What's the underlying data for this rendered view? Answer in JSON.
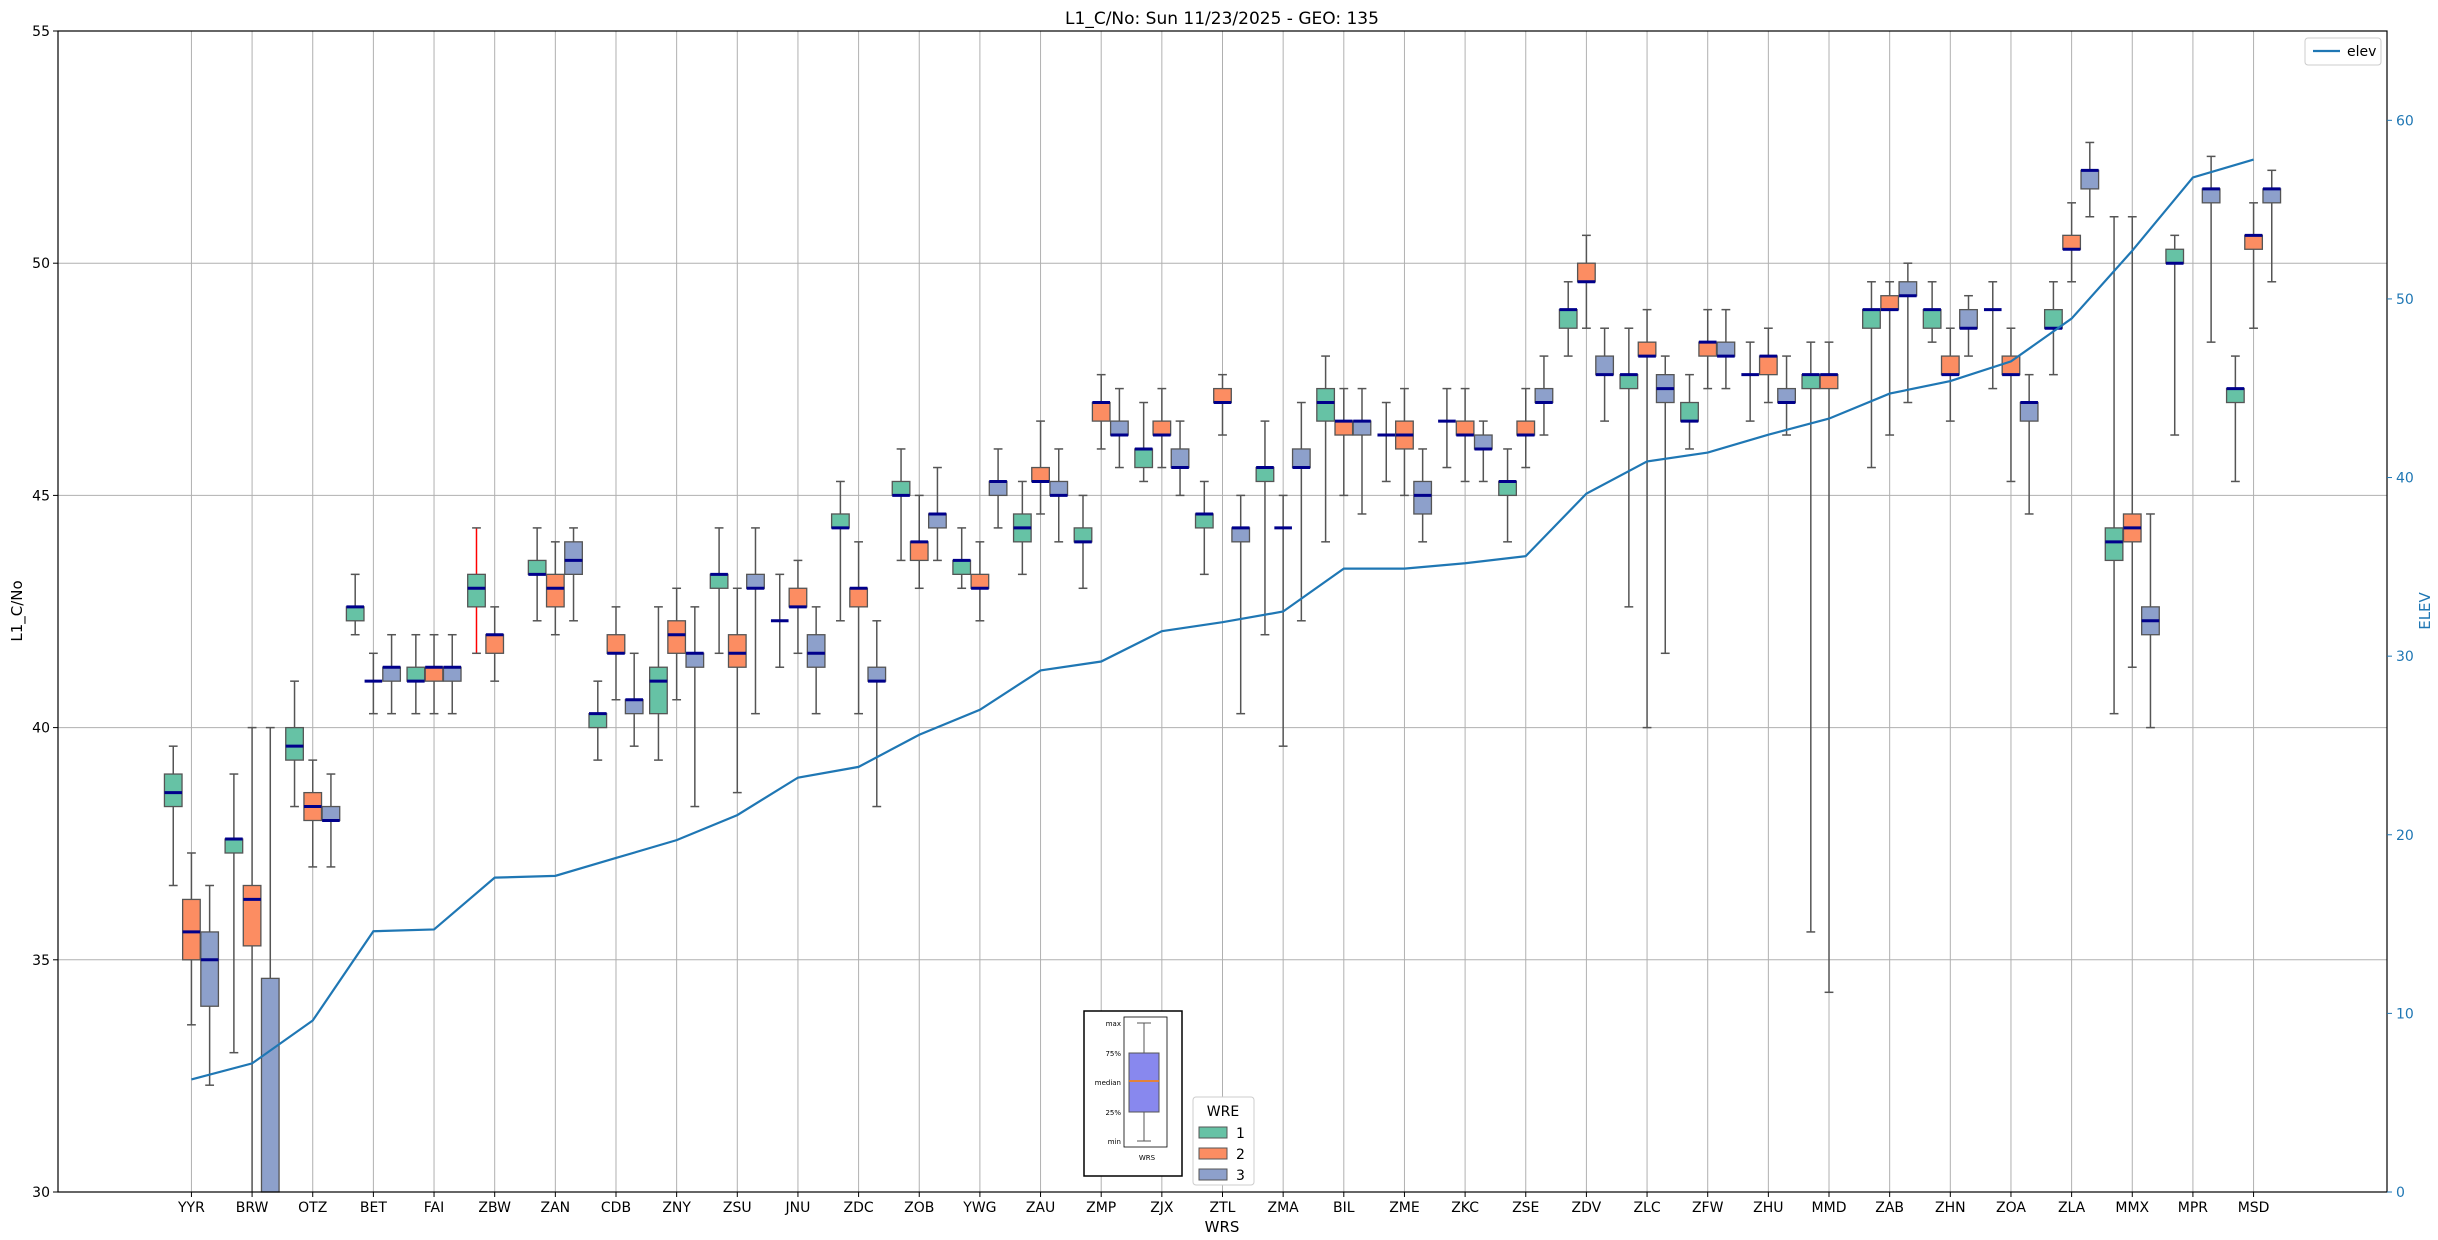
{
  "chart_data": {
    "type": "box",
    "title": "L1_C/No: Sun 11/23/2025 - GEO: 135",
    "xlabel": "WRS",
    "ylabel": "L1_C/No",
    "y2label": "ELEV",
    "ylim": [
      30,
      55
    ],
    "yticks": [
      30,
      35,
      40,
      45,
      50,
      55
    ],
    "y2lim": [
      0,
      65
    ],
    "y2ticks": [
      0,
      10,
      20,
      30,
      40,
      50,
      60
    ],
    "grid": true,
    "categories": [
      "YYR",
      "BRW",
      "OTZ",
      "BET",
      "FAI",
      "ZBW",
      "ZAN",
      "CDB",
      "ZNY",
      "ZSU",
      "JNU",
      "ZDC",
      "ZOB",
      "YWG",
      "ZAU",
      "ZMP",
      "ZJX",
      "ZTL",
      "ZMA",
      "BIL",
      "ZME",
      "ZKC",
      "ZSE",
      "ZDV",
      "ZLC",
      "ZFW",
      "ZHU",
      "MMD",
      "ZAB",
      "ZHN",
      "ZOA",
      "ZLA",
      "MMX",
      "MPR",
      "MSD"
    ],
    "box_stats_order": [
      "min",
      "q1",
      "median",
      "q3",
      "max"
    ],
    "legend": {
      "title": "WRE",
      "placement": "bottom-center"
    },
    "series": [
      {
        "name": "1",
        "color": "#66c2a5",
        "boxes": [
          [
            36.6,
            38.3,
            38.6,
            39.0,
            39.6
          ],
          [
            33.0,
            37.3,
            37.6,
            37.6,
            39.0
          ],
          [
            38.3,
            39.3,
            39.6,
            40.0,
            41.0
          ],
          [
            42.0,
            42.3,
            42.6,
            42.6,
            43.3
          ],
          [
            40.3,
            41.0,
            41.0,
            41.3,
            42.0
          ],
          [
            41.6,
            42.6,
            43.0,
            43.3,
            44.3
          ],
          [
            42.3,
            43.3,
            43.3,
            43.6,
            44.3
          ],
          [
            39.3,
            40.0,
            40.3,
            40.3,
            41.0
          ],
          [
            39.3,
            40.3,
            41.0,
            41.3,
            42.6
          ],
          [
            41.6,
            43.0,
            43.3,
            43.3,
            44.3
          ],
          [
            41.3,
            42.3,
            42.3,
            42.3,
            43.3
          ],
          [
            42.3,
            44.3,
            44.3,
            44.6,
            45.3
          ],
          [
            43.6,
            45.0,
            45.0,
            45.3,
            46.0
          ],
          [
            43.0,
            43.3,
            43.6,
            43.6,
            44.3
          ],
          [
            43.3,
            44.0,
            44.3,
            44.6,
            45.3
          ],
          [
            43.0,
            44.0,
            44.0,
            44.3,
            45.0
          ],
          [
            45.3,
            45.6,
            46.0,
            46.0,
            47.0
          ],
          [
            43.3,
            44.3,
            44.6,
            44.6,
            45.3
          ],
          [
            42.0,
            45.3,
            45.6,
            45.6,
            46.6
          ],
          [
            44.0,
            46.6,
            47.0,
            47.3,
            48.0
          ],
          [
            45.3,
            46.3,
            46.3,
            46.3,
            47.0
          ],
          [
            45.6,
            46.6,
            46.6,
            46.6,
            47.3
          ],
          [
            44.0,
            45.0,
            45.3,
            45.3,
            46.0
          ],
          [
            48.0,
            48.6,
            49.0,
            49.0,
            49.6
          ],
          [
            42.6,
            47.3,
            47.6,
            47.6,
            48.6
          ],
          [
            46.0,
            46.6,
            46.6,
            47.0,
            47.6
          ],
          [
            46.6,
            47.6,
            47.6,
            47.6,
            48.3
          ],
          [
            35.6,
            47.3,
            47.6,
            47.6,
            48.3
          ],
          [
            45.6,
            48.6,
            49.0,
            49.0,
            49.6
          ],
          [
            48.3,
            48.6,
            49.0,
            49.0,
            49.6
          ],
          [
            47.3,
            49.0,
            49.0,
            49.0,
            49.6
          ],
          [
            47.6,
            48.6,
            48.6,
            49.0,
            49.6
          ],
          [
            40.3,
            43.6,
            44.0,
            44.3,
            51.0
          ],
          [
            46.3,
            50.0,
            50.0,
            50.3,
            50.6
          ],
          [
            45.3,
            47.0,
            47.3,
            47.3,
            48.0
          ]
        ]
      },
      {
        "name": "2",
        "color": "#fc8d62",
        "boxes": [
          [
            33.6,
            35.0,
            35.6,
            36.3,
            37.3
          ],
          [
            29.0,
            35.3,
            36.3,
            36.6,
            40.0
          ],
          [
            37.0,
            38.0,
            38.3,
            38.6,
            39.3
          ],
          [
            40.3,
            41.0,
            41.0,
            41.0,
            41.6
          ],
          [
            40.3,
            41.0,
            41.3,
            41.3,
            42.0
          ],
          [
            41.0,
            41.6,
            42.0,
            42.0,
            42.6
          ],
          [
            42.0,
            42.6,
            43.0,
            43.3,
            44.0
          ],
          [
            40.6,
            41.6,
            41.6,
            42.0,
            42.6
          ],
          [
            40.6,
            41.6,
            42.0,
            42.3,
            43.0
          ],
          [
            38.6,
            41.3,
            41.6,
            42.0,
            43.0
          ],
          [
            41.6,
            42.6,
            42.6,
            43.0,
            43.6
          ],
          [
            40.3,
            42.6,
            43.0,
            43.0,
            44.0
          ],
          [
            43.0,
            43.6,
            44.0,
            44.0,
            45.0
          ],
          [
            42.3,
            43.0,
            43.0,
            43.3,
            44.0
          ],
          [
            44.6,
            45.3,
            45.3,
            45.6,
            46.6
          ],
          [
            46.0,
            46.6,
            47.0,
            47.0,
            47.6
          ],
          [
            45.6,
            46.3,
            46.3,
            46.6,
            47.3
          ],
          [
            46.3,
            47.0,
            47.0,
            47.3,
            47.6
          ],
          [
            39.6,
            44.3,
            44.3,
            44.3,
            45.0
          ],
          [
            45.0,
            46.3,
            46.6,
            46.6,
            47.3
          ],
          [
            45.0,
            46.0,
            46.3,
            46.6,
            47.3
          ],
          [
            45.3,
            46.3,
            46.3,
            46.6,
            47.3
          ],
          [
            45.6,
            46.3,
            46.3,
            46.6,
            47.3
          ],
          [
            48.6,
            49.6,
            49.6,
            50.0,
            50.6
          ],
          [
            40.0,
            48.0,
            48.0,
            48.3,
            49.0
          ],
          [
            47.3,
            48.0,
            48.3,
            48.3,
            49.0
          ],
          [
            47.0,
            47.6,
            48.0,
            48.0,
            48.6
          ],
          [
            34.3,
            47.3,
            47.6,
            47.6,
            48.3
          ],
          [
            46.3,
            49.0,
            49.0,
            49.3,
            49.6
          ],
          [
            46.6,
            47.6,
            47.6,
            48.0,
            48.6
          ],
          [
            45.3,
            47.6,
            47.6,
            48.0,
            48.6
          ],
          [
            49.6,
            50.3,
            50.3,
            50.6,
            51.3
          ],
          [
            41.3,
            44.0,
            44.3,
            44.6,
            51.0
          ],
          null,
          [
            48.6,
            50.3,
            50.6,
            50.6,
            51.3
          ]
        ]
      },
      {
        "name": "3",
        "color": "#8da0cb",
        "boxes": [
          [
            32.3,
            34.0,
            35.0,
            35.6,
            36.6
          ],
          [
            25.0,
            27.0,
            29.0,
            34.6,
            40.0
          ],
          [
            37.0,
            38.0,
            38.0,
            38.3,
            39.0
          ],
          [
            40.3,
            41.0,
            41.3,
            41.3,
            42.0
          ],
          [
            40.3,
            41.0,
            41.3,
            41.3,
            42.0
          ],
          null,
          [
            42.3,
            43.3,
            43.6,
            44.0,
            44.3
          ],
          [
            39.6,
            40.3,
            40.6,
            40.6,
            41.6
          ],
          [
            38.3,
            41.3,
            41.6,
            41.6,
            42.6
          ],
          [
            40.3,
            43.0,
            43.0,
            43.3,
            44.3
          ],
          [
            40.3,
            41.3,
            41.6,
            42.0,
            42.6
          ],
          [
            38.3,
            41.0,
            41.0,
            41.3,
            42.3
          ],
          [
            43.6,
            44.3,
            44.6,
            44.6,
            45.6
          ],
          [
            44.3,
            45.0,
            45.3,
            45.3,
            46.0
          ],
          [
            44.0,
            45.0,
            45.0,
            45.3,
            46.0
          ],
          [
            45.6,
            46.3,
            46.3,
            46.6,
            47.3
          ],
          [
            45.0,
            45.6,
            45.6,
            46.0,
            46.6
          ],
          [
            40.3,
            44.0,
            44.3,
            44.3,
            45.0
          ],
          [
            42.3,
            45.6,
            45.6,
            46.0,
            47.0
          ],
          [
            44.6,
            46.3,
            46.6,
            46.6,
            47.3
          ],
          [
            44.0,
            44.6,
            45.0,
            45.3,
            46.0
          ],
          [
            45.3,
            46.0,
            46.0,
            46.3,
            46.6
          ],
          [
            46.3,
            47.0,
            47.0,
            47.3,
            48.0
          ],
          [
            46.6,
            47.6,
            47.6,
            48.0,
            48.6
          ],
          [
            41.6,
            47.0,
            47.3,
            47.6,
            48.0
          ],
          [
            47.3,
            48.0,
            48.0,
            48.3,
            49.0
          ],
          [
            46.3,
            47.0,
            47.0,
            47.3,
            48.0
          ],
          null,
          [
            47.0,
            49.3,
            49.3,
            49.6,
            50.0
          ],
          [
            48.0,
            48.6,
            48.6,
            49.0,
            49.3
          ],
          [
            44.6,
            46.6,
            47.0,
            47.0,
            47.6
          ],
          [
            51.0,
            51.6,
            52.0,
            52.0,
            52.6
          ],
          [
            40.0,
            42.0,
            42.3,
            42.6,
            44.6
          ],
          [
            48.3,
            51.3,
            51.6,
            51.6,
            52.3
          ],
          [
            49.6,
            51.3,
            51.6,
            51.6,
            52.0
          ]
        ]
      }
    ],
    "line": {
      "name": "elev",
      "axis": "right",
      "color": "#1f77b4",
      "values": [
        6.3,
        7.2,
        9.6,
        14.6,
        14.7,
        17.6,
        17.7,
        18.7,
        19.7,
        21.1,
        23.2,
        23.8,
        25.6,
        27.0,
        29.2,
        29.7,
        31.4,
        31.9,
        32.5,
        34.9,
        34.9,
        35.2,
        35.6,
        39.1,
        40.9,
        41.4,
        42.4,
        43.3,
        44.7,
        45.4,
        46.5,
        48.9,
        52.7,
        56.8,
        57.8
      ]
    },
    "line_legend": {
      "label": "elev",
      "placement": "top-right"
    },
    "highlight_whisker": {
      "category": "ZBW",
      "series": "1",
      "color": "#ff0000"
    },
    "inset_key": {
      "labels": [
        "max",
        "75%",
        "median",
        "25%",
        "min"
      ],
      "xlabel": "WRS"
    }
  }
}
